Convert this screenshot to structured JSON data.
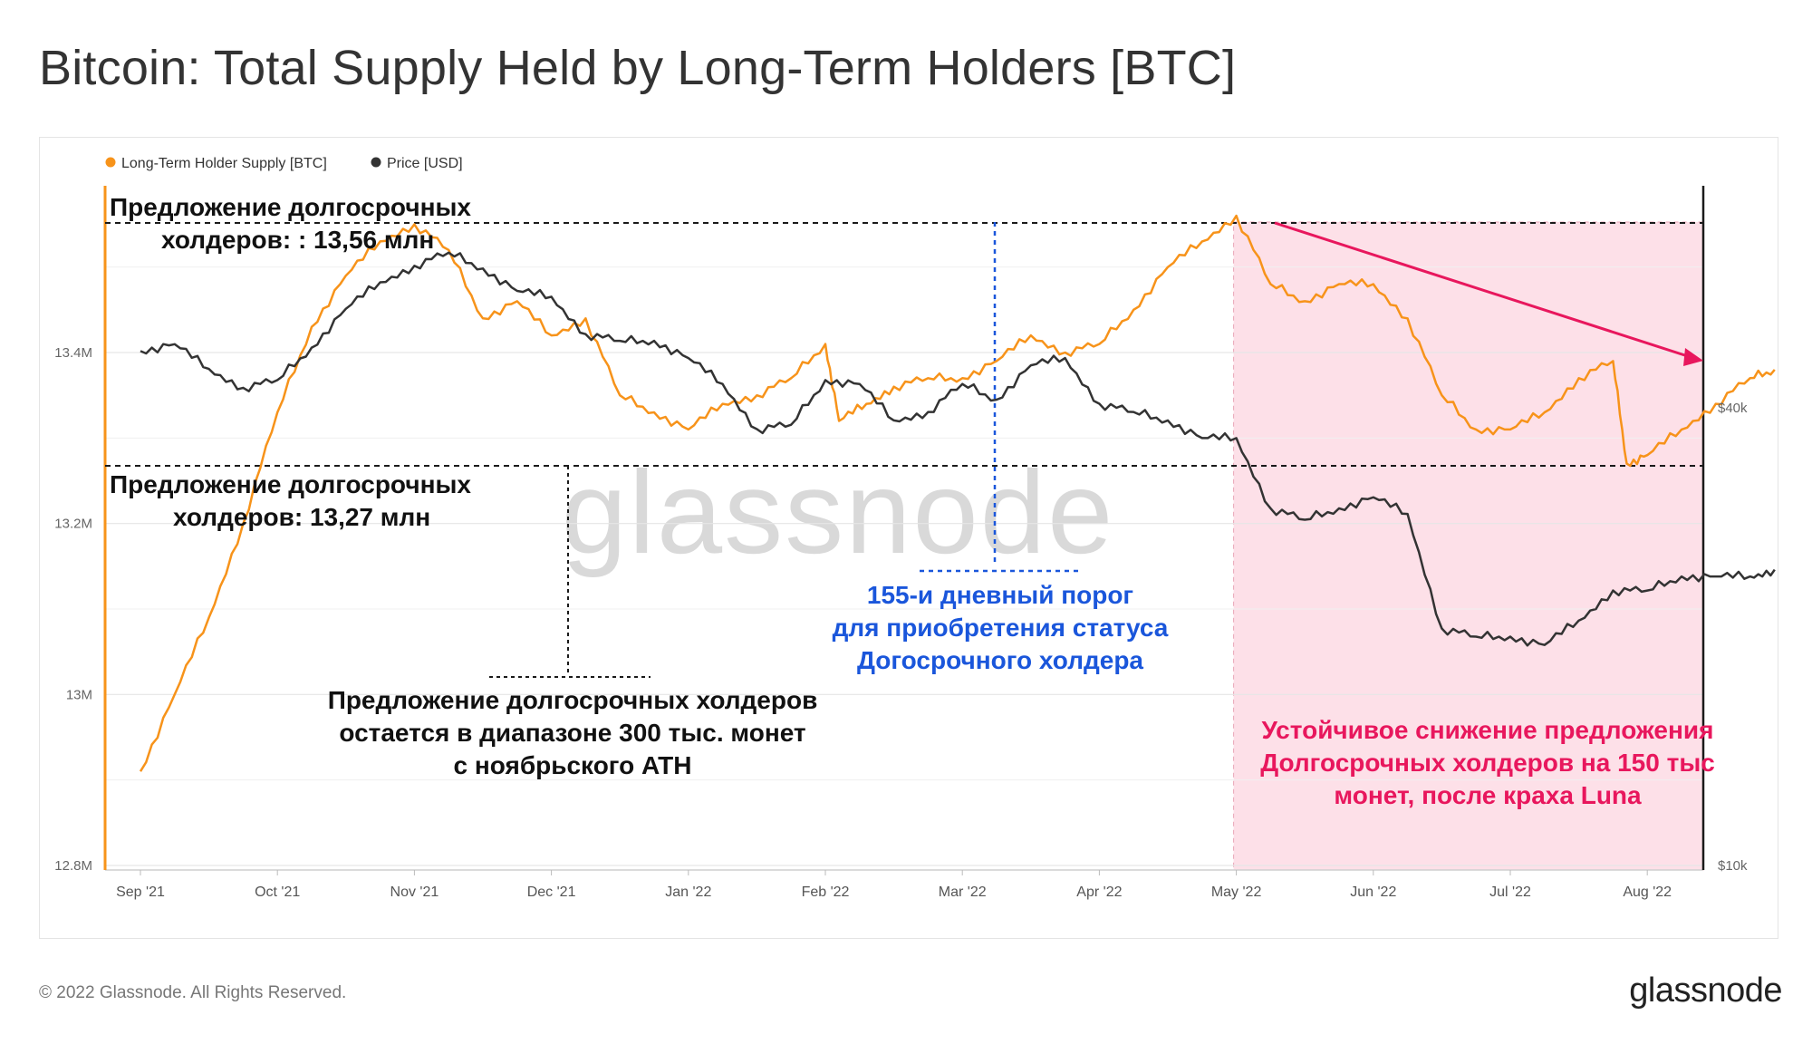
{
  "title": "Bitcoin: Total Supply Held by Long-Term Holders [BTC]",
  "footer": "© 2022 Glassnode. All Rights Reserved.",
  "logo": "glassnode",
  "watermark": "glassnode",
  "colors": {
    "lth": "#f7931a",
    "price": "#333333",
    "highlight": "#fde0e8",
    "highlight_border": "#e9a6b7",
    "pink": "#e8175d",
    "blue": "#1a56db",
    "grid": "#e6e6e6",
    "guide": "#1a1a1a"
  },
  "legend": [
    {
      "label": "Long-Term Holder Supply [BTC]",
      "color": "#f7931a"
    },
    {
      "label": "Price [USD]",
      "color": "#333333"
    }
  ],
  "annotations": {
    "top_line1": "Предложение долгосрочных",
    "top_line2": "холдеров: : 13,56 млн",
    "bottom_line1": "Предложение долгосрочных",
    "bottom_line2": "холдеров: 13,27 млн",
    "range_line1": "Предложение долгосрочных холдеров",
    "range_line2": "остается в диапазоне 300 тыс. монет",
    "range_line3": "с ноябрьского ATH",
    "threshold_line1": "155-и дневный порог",
    "threshold_line2": "для приобретения статуса",
    "threshold_line3": "Догосрочного холдера",
    "decline_line1": "Устойчивое снижение предложения",
    "decline_line2": "Долгосрочных холдеров на 150 тыс",
    "decline_line3": "монет, после краха Luna"
  },
  "chart_data": {
    "type": "line",
    "title": "Bitcoin: Total Supply Held by Long-Term Holders [BTC]",
    "x_ticks": [
      "Sep '21",
      "Oct '21",
      "Nov '21",
      "Dec '21",
      "Jan '22",
      "Feb '22",
      "Mar '22",
      "Apr '22",
      "May '22",
      "Jun '22",
      "Jul '22",
      "Aug '22"
    ],
    "y_left": {
      "label": "Long-Term Holder Supply [BTC]",
      "ticks": [
        "12.8M",
        "13M",
        "13.2M",
        "13.4M"
      ],
      "tick_values": [
        12.8,
        13.0,
        13.2,
        13.4
      ],
      "range": [
        12.8,
        13.6
      ]
    },
    "y_right": {
      "label": "Price [USD]",
      "scale": "log",
      "ticks": [
        "$10k",
        "$40k"
      ],
      "tick_values": [
        10000,
        40000
      ]
    },
    "reference_levels": {
      "lth_high": 13.56,
      "lth_low": 13.27
    },
    "series": [
      {
        "name": "Long-Term Holder Supply [BTC]",
        "axis": "left",
        "x": [
          0.0,
          0.25,
          0.5,
          0.75,
          1.0,
          1.25,
          1.5,
          1.75,
          2.0,
          2.25,
          2.5,
          2.75,
          3.0,
          3.25,
          3.5,
          3.75,
          4.0,
          4.25,
          4.5,
          4.75,
          5.0,
          5.1,
          5.3,
          5.5,
          5.75,
          6.0,
          6.25,
          6.5,
          6.75,
          7.0,
          7.25,
          7.5,
          7.75,
          8.0,
          8.25,
          8.5,
          8.75,
          9.0,
          9.25,
          9.5,
          9.75,
          10.0,
          10.25,
          10.5,
          10.75,
          10.85,
          11.0,
          11.25,
          11.5,
          11.75,
          11.93
        ],
        "values": [
          12.91,
          13.0,
          13.09,
          13.2,
          13.33,
          13.43,
          13.49,
          13.53,
          13.55,
          13.52,
          13.44,
          13.46,
          13.42,
          13.44,
          13.35,
          13.33,
          13.31,
          13.34,
          13.35,
          13.37,
          13.41,
          13.32,
          13.34,
          13.36,
          13.37,
          13.37,
          13.39,
          13.42,
          13.4,
          13.41,
          13.45,
          13.5,
          13.53,
          13.56,
          13.48,
          13.46,
          13.48,
          13.48,
          13.44,
          13.35,
          13.31,
          13.31,
          13.33,
          13.37,
          13.39,
          13.27,
          13.28,
          13.31,
          13.34,
          13.37,
          13.38
        ]
      },
      {
        "name": "Price [USD]",
        "axis": "right",
        "x": [
          0.0,
          0.25,
          0.5,
          0.75,
          1.0,
          1.25,
          1.5,
          1.75,
          2.0,
          2.25,
          2.5,
          2.75,
          3.0,
          3.25,
          3.5,
          3.75,
          4.0,
          4.25,
          4.5,
          4.75,
          5.0,
          5.25,
          5.5,
          5.75,
          6.0,
          6.25,
          6.5,
          6.75,
          7.0,
          7.25,
          7.5,
          7.75,
          8.0,
          8.25,
          8.5,
          8.75,
          9.0,
          9.25,
          9.5,
          9.75,
          10.0,
          10.25,
          10.5,
          10.75,
          11.0,
          11.25,
          11.5,
          11.75,
          11.93
        ],
        "values": [
          47500,
          48500,
          45000,
          42500,
          43500,
          48000,
          54000,
          58500,
          61500,
          64000,
          61000,
          57000,
          56000,
          50000,
          49000,
          49000,
          46500,
          43000,
          37500,
          38000,
          43500,
          43000,
          38500,
          39500,
          43000,
          41000,
          45500,
          46500,
          40500,
          39500,
          38500,
          36500,
          36500,
          29500,
          28500,
          29500,
          30500,
          29000,
          20500,
          20000,
          20000,
          19500,
          21000,
          23000,
          23000,
          24000,
          24000,
          24000,
          24500
        ]
      }
    ]
  }
}
